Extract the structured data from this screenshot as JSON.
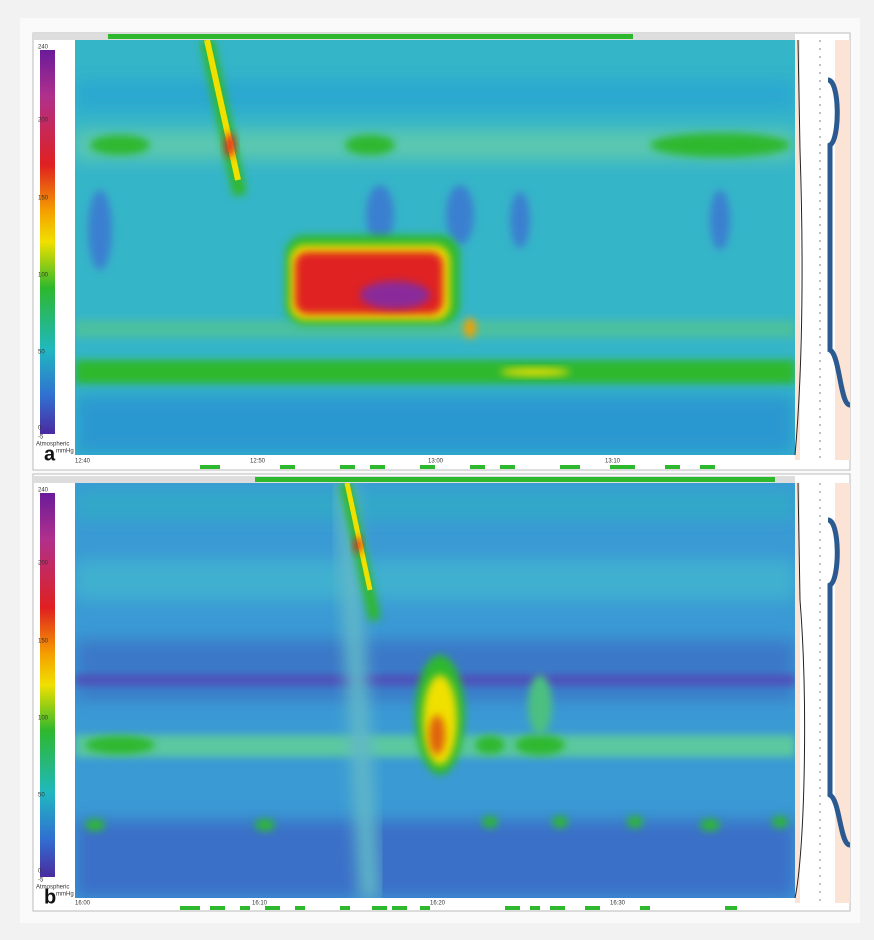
{
  "panels": [
    {
      "label": "a",
      "scale": [
        "240",
        "200",
        "150",
        "100",
        "50",
        "0",
        "-5"
      ],
      "scale_caption": "Atmospheric",
      "scale_unit": "mmHg",
      "times": [
        "12:40",
        "12:50",
        "13:00",
        "13:10"
      ]
    },
    {
      "label": "b",
      "scale": [
        "240",
        "200",
        "150",
        "100",
        "50",
        "0",
        "-5"
      ],
      "scale_caption": "Atmospheric",
      "scale_unit": "mmHg",
      "times": [
        "16:00",
        "16:10",
        "16:20",
        "16:30"
      ]
    }
  ]
}
